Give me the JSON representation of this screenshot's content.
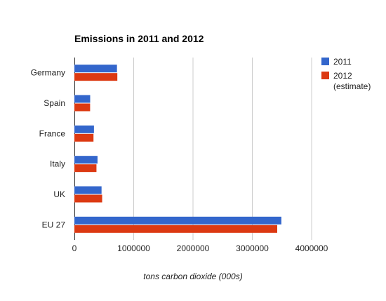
{
  "chart_data": {
    "type": "bar",
    "orientation": "horizontal",
    "title": "Emissions in 2011 and 2012",
    "xlabel": "tons carbon dioxide (000s)",
    "ylabel": "",
    "categories": [
      "Germany",
      "Spain",
      "France",
      "Italy",
      "UK",
      "EU 27"
    ],
    "series": [
      {
        "name": "2011",
        "color": "#3366cc",
        "values": [
          718000,
          266000,
          330000,
          390000,
          458000,
          3490000
        ]
      },
      {
        "name": "2012 (estimate)",
        "name_lines": [
          "2012",
          "(estimate)"
        ],
        "color": "#dc3912",
        "values": [
          724000,
          265000,
          322000,
          372000,
          468000,
          3420000
        ]
      }
    ],
    "xlim": [
      0,
      4000000
    ],
    "xticks": [
      "0",
      "1000000",
      "2000000",
      "3000000",
      "4000000"
    ],
    "xtick_values": [
      0,
      1000000,
      2000000,
      3000000,
      4000000
    ],
    "grid": true,
    "legend_position": "right"
  }
}
